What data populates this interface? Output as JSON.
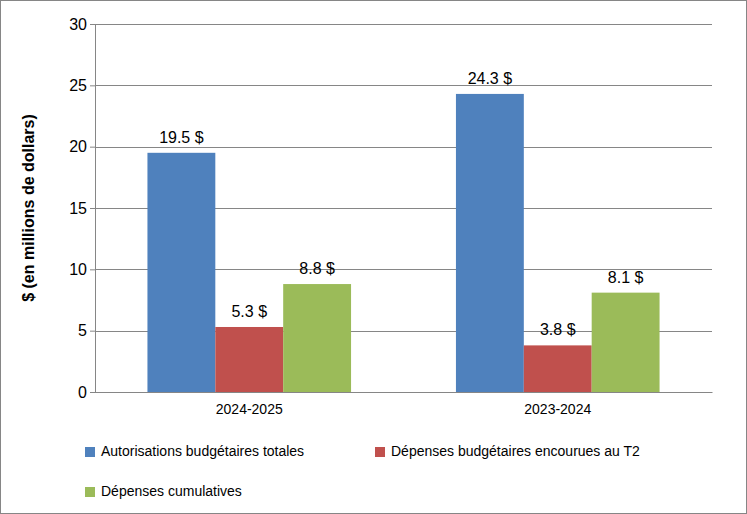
{
  "chart_data": {
    "type": "bar",
    "y_label": "$ (en millions de dollars)",
    "categories": [
      "2024-2025",
      "2023-2024"
    ],
    "series": [
      {
        "name": "Autorisations budgétaires totales",
        "color": "#4f81bd",
        "values": [
          19.5,
          24.3
        ],
        "value_labels": [
          "19.5 $",
          "24.3 $"
        ]
      },
      {
        "name": "Dépenses budgétaires encourues au T2",
        "color": "#c0504d",
        "values": [
          5.3,
          3.8
        ],
        "value_labels": [
          "5.3 $",
          "3.8 $"
        ]
      },
      {
        "name": "Dépenses cumulatives",
        "color": "#9bbb59",
        "values": [
          8.8,
          8.1
        ],
        "value_labels": [
          "8.8 $",
          "8.1 $"
        ]
      }
    ],
    "ylim": [
      0,
      30
    ],
    "yticks": [
      0,
      5,
      10,
      15,
      20,
      25,
      30
    ],
    "grid": true,
    "legend": "bottom",
    "data_labels": true
  }
}
